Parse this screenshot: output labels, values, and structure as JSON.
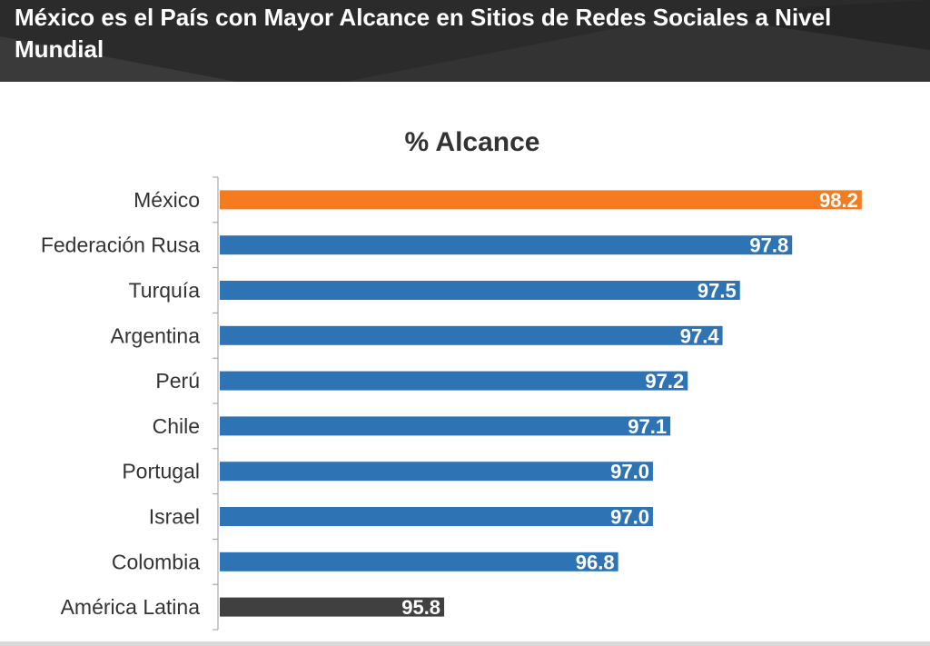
{
  "header": {
    "title": "México es el País con Mayor Alcance en Sitios de Redes Sociales a Nivel Mundial"
  },
  "chart_data": {
    "type": "bar",
    "orientation": "horizontal",
    "title": "% Alcance",
    "xlabel": "",
    "ylabel": "",
    "categories": [
      "México",
      "Federación Rusa",
      "Turquía",
      "Argentina",
      "Perú",
      "Chile",
      "Portugal",
      "Israel",
      "Colombia",
      "América Latina"
    ],
    "values": [
      98.2,
      97.8,
      97.5,
      97.4,
      97.2,
      97.1,
      97.0,
      97.0,
      96.8,
      95.8
    ],
    "value_labels": [
      "98.2",
      "97.8",
      "97.5",
      "97.4",
      "97.2",
      "97.1",
      "97.0",
      "97.0",
      "96.8",
      "95.8"
    ],
    "bar_colors": [
      "#f47b20",
      "#2e74b5",
      "#2e74b5",
      "#2e74b5",
      "#2e74b5",
      "#2e74b5",
      "#2e74b5",
      "#2e74b5",
      "#2e74b5",
      "#404040"
    ],
    "xlim": [
      94.5,
      98.3
    ],
    "grid": false,
    "legend": "none"
  }
}
